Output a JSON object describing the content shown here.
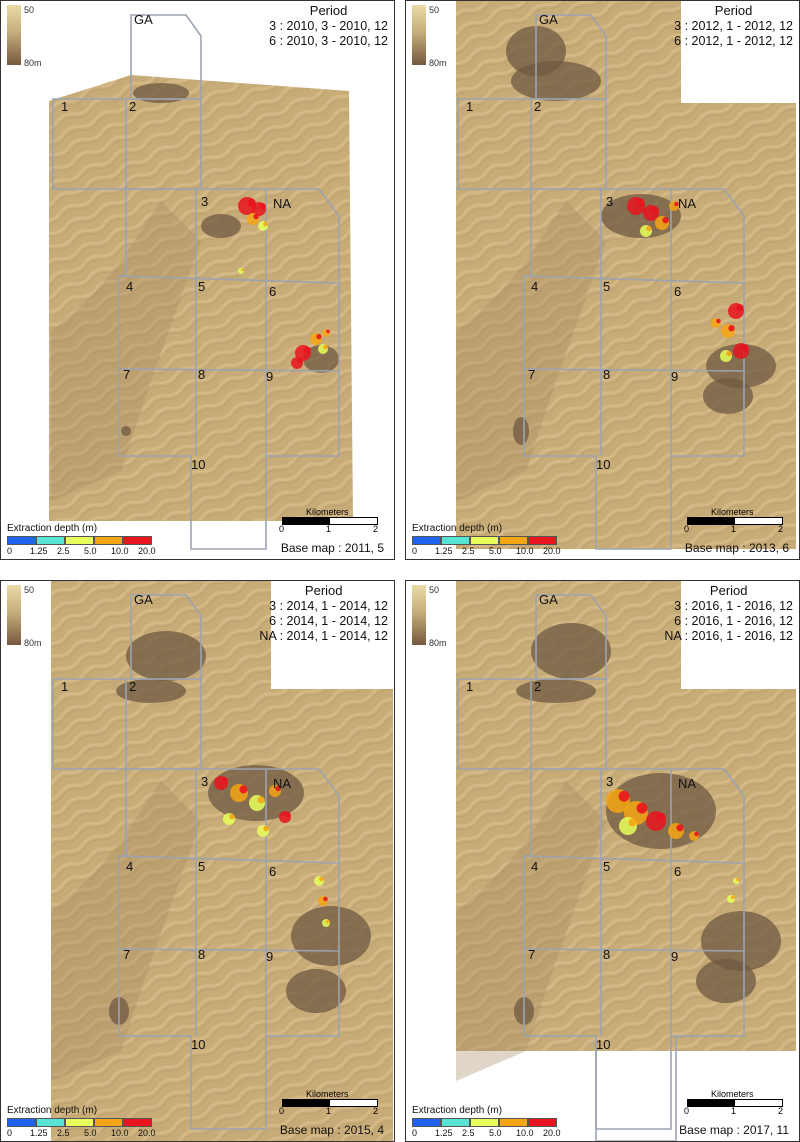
{
  "legend": {
    "title": "Extraction depth (m)",
    "ticks": [
      "0",
      "1.25",
      "2.5",
      "5.0",
      "10.0",
      "20.0"
    ],
    "colors": [
      "#1f64f0",
      "#58e4d4",
      "#e8ff5a",
      "#f5a414",
      "#e8141e"
    ]
  },
  "elevation": {
    "high": "50",
    "low": "80m"
  },
  "scalebar": {
    "title": "Kilometers",
    "labels": [
      "0",
      "1",
      "2"
    ]
  },
  "panels": [
    {
      "period_title": "Period",
      "period_lines": [
        "3 : 2010, 3 - 2010, 12",
        "6 : 2010, 3 - 2010, 12"
      ],
      "base_map": "Base map : 2011, 5",
      "site_labels": [
        "GA",
        "1",
        "2",
        "3",
        "NA",
        "4",
        "5",
        "6",
        "7",
        "8",
        "9",
        "10"
      ]
    },
    {
      "period_title": "Period",
      "period_lines": [
        "3 : 2012, 1 - 2012, 12",
        "6 : 2012, 1 - 2012, 12"
      ],
      "base_map": "Base map : 2013, 6",
      "site_labels": [
        "GA",
        "1",
        "2",
        "3",
        "NA",
        "4",
        "5",
        "6",
        "7",
        "8",
        "9",
        "10"
      ]
    },
    {
      "period_title": "Period",
      "period_lines": [
        "3 : 2014, 1 - 2014, 12",
        "6 : 2014, 1 - 2014, 12",
        "NA : 2014, 1 - 2014, 12"
      ],
      "base_map": "Base map : 2015, 4",
      "site_labels": [
        "GA",
        "1",
        "2",
        "3",
        "NA",
        "4",
        "5",
        "6",
        "7",
        "8",
        "9",
        "10"
      ]
    },
    {
      "period_title": "Period",
      "period_lines": [
        "3 : 2016, 1 - 2016, 12",
        "6 : 2016, 1 - 2016, 12",
        "NA : 2016, 1 - 2016, 12"
      ],
      "base_map": "Base map : 2017, 11",
      "site_labels": [
        "GA",
        "1",
        "2",
        "3",
        "NA",
        "4",
        "5",
        "6",
        "7",
        "8",
        "9",
        "10"
      ]
    }
  ]
}
